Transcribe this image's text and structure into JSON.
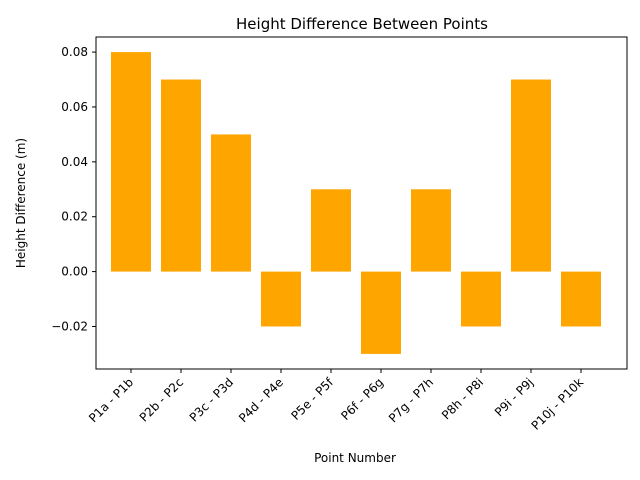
{
  "chart_data": {
    "type": "bar",
    "title": "Height Difference Between Points",
    "xlabel": "Point Number",
    "ylabel": "Height Difference (m)",
    "categories": [
      "P1a - P1b",
      "P2b - P2c",
      "P3c - P3d",
      "P4d - P4e",
      "P5e - P5f",
      "P6f - P6g",
      "P7g - P7h",
      "P8h - P8i",
      "P9i - P9j",
      "P10j - P10k"
    ],
    "values": [
      0.08,
      0.07,
      0.05,
      -0.02,
      0.03,
      -0.03,
      0.03,
      -0.02,
      0.07,
      -0.02
    ],
    "ylim": [
      -0.0355,
      0.0855
    ],
    "yticks": [
      -0.02,
      0.0,
      0.02,
      0.04,
      0.06,
      0.08
    ],
    "ytick_labels": [
      "−0.02",
      "0.00",
      "0.02",
      "0.04",
      "0.06",
      "0.08"
    ],
    "bar_color": "#ffa500",
    "grid": false,
    "legend": "none"
  }
}
